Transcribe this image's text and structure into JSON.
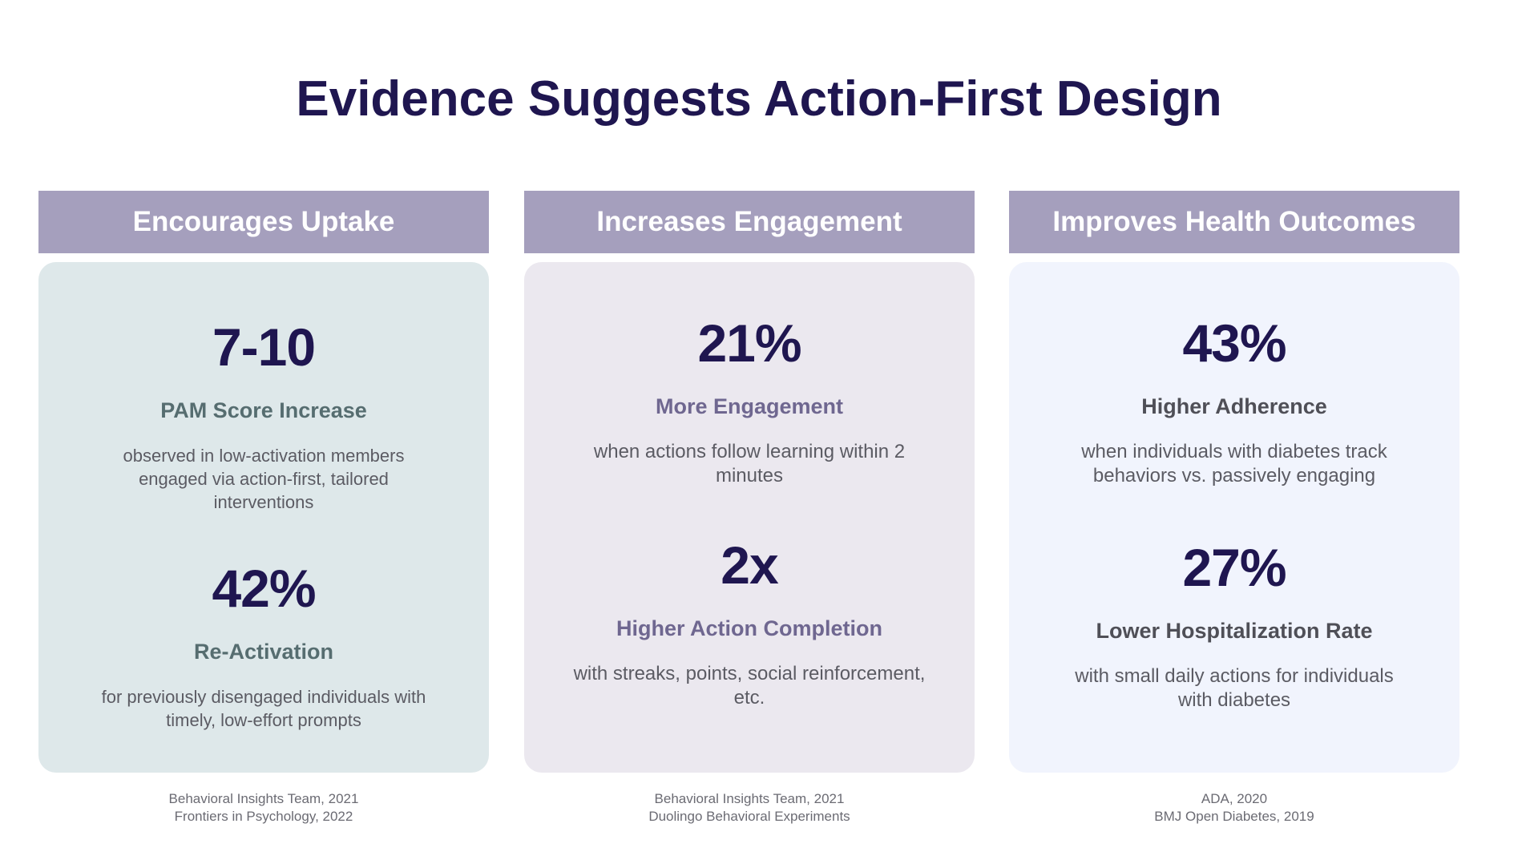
{
  "title": "Evidence Suggests Action-First Design",
  "columns": [
    {
      "header": "Encourages Uptake",
      "stats": [
        {
          "value": "7-10",
          "label": "PAM Score Increase",
          "description": "observed in low-activation members engaged via action-first, tailored interventions"
        },
        {
          "value": "42%",
          "label": "Re-Activation",
          "description": "for previously disengaged individuals with timely, low-effort prompts"
        }
      ],
      "sources": [
        "Behavioral Insights Team, 2021",
        "Frontiers in Psychology, 2022"
      ]
    },
    {
      "header": "Increases Engagement",
      "stats": [
        {
          "value": "21%",
          "label": "More Engagement",
          "description": "when actions follow learning within 2 minutes"
        },
        {
          "value": "2x",
          "label": "Higher Action Completion",
          "description": "with streaks, points, social reinforcement, etc."
        }
      ],
      "sources": [
        "Behavioral Insights Team, 2021",
        "Duolingo Behavioral Experiments"
      ]
    },
    {
      "header": "Improves Health Outcomes",
      "stats": [
        {
          "value": "43%",
          "label": "Higher Adherence",
          "description": "when individuals with diabetes track behaviors vs. passively engaging"
        },
        {
          "value": "27%",
          "label": "Lower Hospitalization Rate",
          "description": "with small daily actions for individuals with diabetes"
        }
      ],
      "sources": [
        "ADA, 2020",
        "BMJ Open Diabetes, 2019"
      ]
    }
  ]
}
